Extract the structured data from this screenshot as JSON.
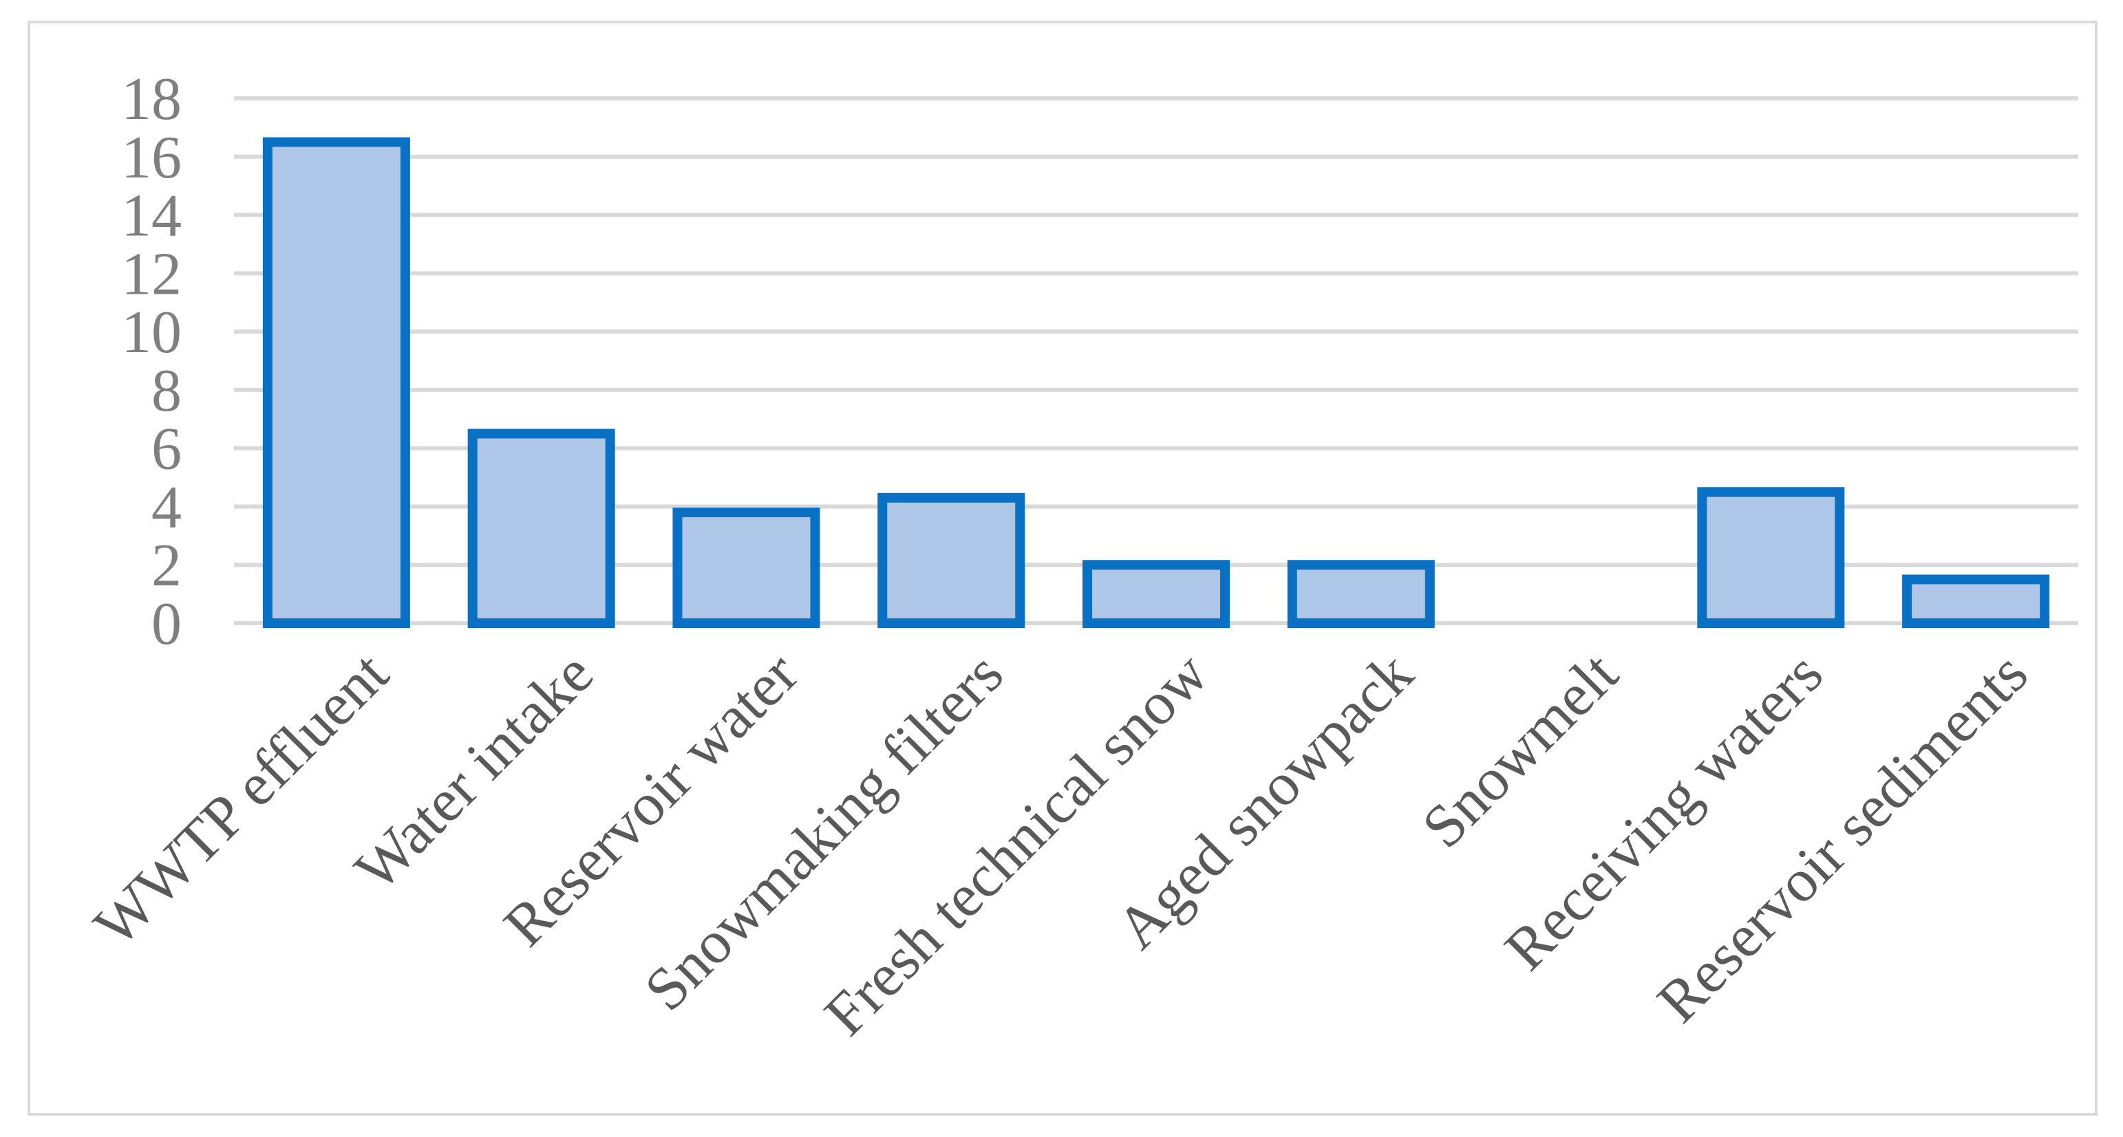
{
  "chart_data": {
    "type": "bar",
    "categories": [
      "WWTP effluent",
      "Water intake",
      "Reservoir water",
      "Snowmaking filters",
      "Fresh technical snow",
      "Aged snowpack",
      "Snowmelt",
      "Receiving waters",
      "Reservoir sediments"
    ],
    "values": [
      16.5,
      6.5,
      3.8,
      4.3,
      2.0,
      2.0,
      0,
      4.5,
      1.5
    ],
    "title": "",
    "xlabel": "",
    "ylabel": "",
    "ylim": [
      0,
      18
    ],
    "yticks": [
      0,
      2,
      4,
      6,
      8,
      10,
      12,
      14,
      16,
      18
    ],
    "grid": true,
    "legend": "none",
    "colors": {
      "bar_fill": "#aec7e8",
      "bar_stroke": "#0a70c4",
      "grid": "#d9d9d9",
      "tick_y": "#7f7f7f",
      "tick_x": "#595959"
    }
  }
}
